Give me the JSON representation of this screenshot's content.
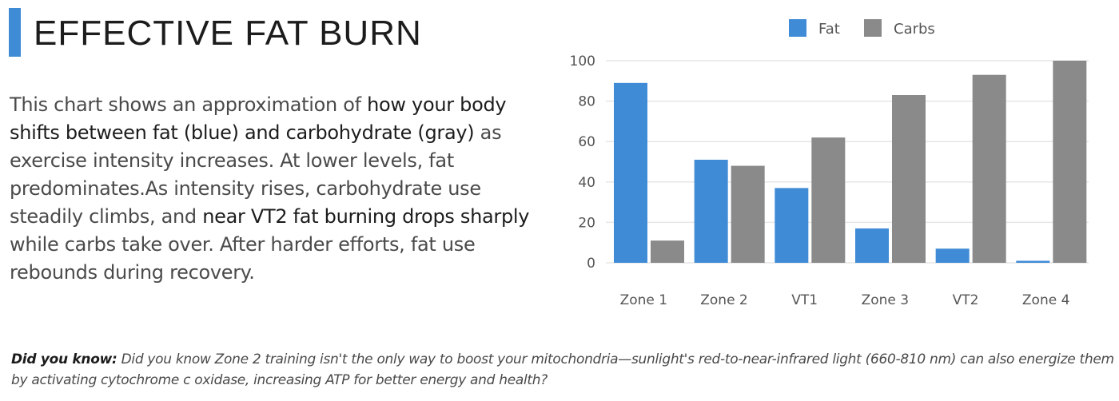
{
  "title": "EFFECTIVE FAT BURN",
  "description": {
    "parts": [
      {
        "text": "This chart shows an approximation of ",
        "emphasis": false
      },
      {
        "text": "how your body shifts between fat (blue) and carbohydrate (gray)",
        "emphasis": true
      },
      {
        "text": " as exercise intensity increases. At lower levels, fat predominates.As intensity rises, carbohydrate use steadily climbs, and ",
        "emphasis": false
      },
      {
        "text": "near VT2 fat burning drops sharply",
        "emphasis": true
      },
      {
        "text": " while carbs take over. After harder efforts, fat use rebounds during recovery.",
        "emphasis": false
      }
    ]
  },
  "fact": {
    "lead": "Did you know:",
    "text": " Did you know Zone 2 training isn't the only way to boost your mitochondria—sunlight's red-to-near-infrared light (660-810 nm) can also energize them by activating cytochrome c oxidase, increasing ATP for better energy and health?"
  },
  "chart_data": {
    "type": "bar",
    "categories": [
      "Zone 1",
      "Zone 2",
      "VT1",
      "Zone 3",
      "VT2",
      "Zone 4"
    ],
    "series": [
      {
        "name": "Fat",
        "color": "#3f8bd6",
        "values": [
          89,
          51,
          37,
          17,
          7,
          1
        ]
      },
      {
        "name": "Carbs",
        "color": "#8a8a8a",
        "values": [
          11,
          48,
          62,
          83,
          93,
          100
        ]
      }
    ],
    "ylim": [
      0,
      100
    ],
    "yticks": [
      0,
      20,
      40,
      60,
      80,
      100
    ],
    "grid": true,
    "legend_position": "top-center"
  }
}
